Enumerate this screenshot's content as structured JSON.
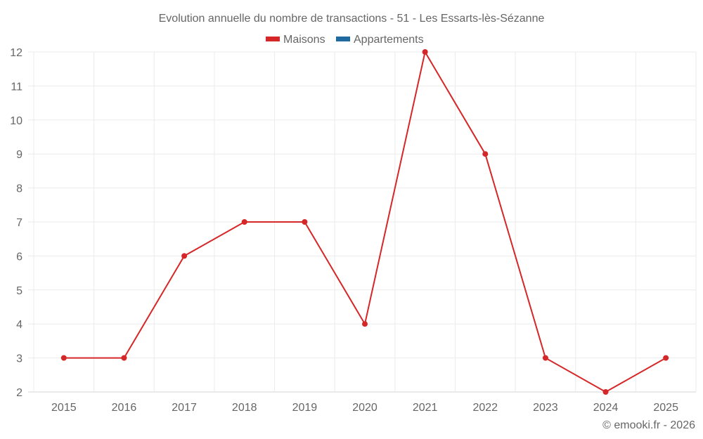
{
  "chart_data": {
    "type": "line",
    "title": "Evolution annuelle du nombre de transactions - 51 - Les Essarts-lès-Sézanne",
    "categories": [
      "2015",
      "2016",
      "2017",
      "2018",
      "2019",
      "2020",
      "2021",
      "2022",
      "2023",
      "2024",
      "2025"
    ],
    "series": [
      {
        "name": "Maisons",
        "color": "#d62728",
        "values": [
          3,
          3,
          6,
          7,
          7,
          4,
          12,
          9,
          3,
          2,
          3
        ]
      },
      {
        "name": "Appartements",
        "color": "#1f6a9e",
        "values": []
      }
    ],
    "xlabel": "",
    "ylabel": "",
    "ylim": [
      2,
      12
    ],
    "yticks": [
      2,
      3,
      4,
      5,
      6,
      7,
      8,
      9,
      10,
      11,
      12
    ],
    "grid": true,
    "legend_position": "top"
  },
  "credit": "© emooki.fr - 2026"
}
